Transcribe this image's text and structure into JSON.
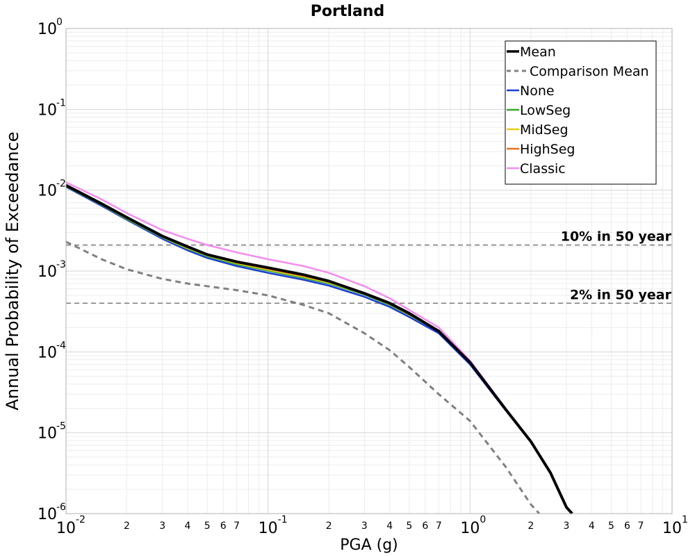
{
  "chart_data": {
    "type": "line",
    "title": "Portland",
    "xlabel": "PGA (g)",
    "ylabel": "Annual Probability of Exceedance",
    "x_scale": "log",
    "y_scale": "log",
    "xlim": [
      0.01,
      10
    ],
    "ylim": [
      1e-06,
      1
    ],
    "grid": true,
    "legend_position": "top-right",
    "x_major_ticks": [
      {
        "value": 0.01,
        "base": "10",
        "exp": "-2"
      },
      {
        "value": 0.1,
        "base": "10",
        "exp": "-1"
      },
      {
        "value": 1,
        "base": "10",
        "exp": "0"
      },
      {
        "value": 10,
        "base": "10",
        "exp": "1"
      }
    ],
    "x_minor_labels": [
      "2",
      "3",
      "4",
      "5",
      "6",
      "7"
    ],
    "y_major_ticks": [
      {
        "value": 1,
        "base": "10",
        "exp": "0"
      },
      {
        "value": 0.1,
        "base": "10",
        "exp": "-1"
      },
      {
        "value": 0.01,
        "base": "10",
        "exp": "-2"
      },
      {
        "value": 0.001,
        "base": "10",
        "exp": "-3"
      },
      {
        "value": 0.0001,
        "base": "10",
        "exp": "-4"
      },
      {
        "value": 1e-05,
        "base": "10",
        "exp": "-5"
      },
      {
        "value": 1e-06,
        "base": "10",
        "exp": "-6"
      }
    ],
    "reference_lines": [
      {
        "label": "10% in 50 year",
        "y": 0.0021,
        "color": "#808080"
      },
      {
        "label": "2% in 50 year",
        "y": 0.0004,
        "color": "#808080"
      }
    ],
    "series": [
      {
        "name": "None",
        "color": "#1a3fd6",
        "width": 2.5,
        "dash": "",
        "x": [
          0.01,
          0.015,
          0.02,
          0.03,
          0.04,
          0.05,
          0.07,
          0.1,
          0.15,
          0.2,
          0.3,
          0.4,
          0.5,
          0.7,
          1.0,
          1.5,
          2.0,
          2.5,
          3.0
        ],
        "y": [
          0.011,
          0.0064,
          0.0043,
          0.0025,
          0.0018,
          0.00145,
          0.00115,
          0.00095,
          0.00078,
          0.00066,
          0.00048,
          0.00036,
          0.00027,
          0.00017,
          7e-05,
          1.9e-05,
          7.7e-06,
          3.2e-06,
          1.2e-06
        ]
      },
      {
        "name": "LowSeg",
        "color": "#3aa62e",
        "width": 2.5,
        "dash": "",
        "x": [
          0.01,
          0.015,
          0.02,
          0.03,
          0.04,
          0.05,
          0.07,
          0.1,
          0.15,
          0.2,
          0.3,
          0.4,
          0.5,
          0.7,
          1.0,
          1.5,
          2.0,
          2.5,
          3.0
        ],
        "y": [
          0.0112,
          0.0066,
          0.0044,
          0.0026,
          0.00188,
          0.00152,
          0.00121,
          0.00101,
          0.00082,
          0.0007,
          0.00051,
          0.00038,
          0.000285,
          0.00018,
          7.3e-05,
          1.95e-05,
          7.8e-06,
          3.2e-06,
          1.2e-06
        ]
      },
      {
        "name": "MidSeg",
        "color": "#e8cf18",
        "width": 2.5,
        "dash": "",
        "x": [
          0.01,
          0.015,
          0.02,
          0.03,
          0.04,
          0.05,
          0.07,
          0.1,
          0.15,
          0.2,
          0.3,
          0.4,
          0.5,
          0.7,
          1.0,
          1.5,
          2.0,
          2.5,
          3.0
        ],
        "y": [
          0.0113,
          0.0067,
          0.0045,
          0.00265,
          0.00192,
          0.00156,
          0.00125,
          0.00104,
          0.00085,
          0.00072,
          0.00052,
          0.00039,
          0.00029,
          0.000182,
          7.4e-05,
          1.95e-05,
          7.8e-06,
          3.2e-06,
          1.2e-06
        ]
      },
      {
        "name": "HighSeg",
        "color": "#e8701a",
        "width": 2.5,
        "dash": "",
        "x": [
          0.01,
          0.015,
          0.02,
          0.03,
          0.04,
          0.05,
          0.07,
          0.1,
          0.15,
          0.2,
          0.3,
          0.4,
          0.5,
          0.7,
          1.0,
          1.5,
          2.0,
          2.5,
          3.0
        ],
        "y": [
          0.0114,
          0.0068,
          0.0046,
          0.0027,
          0.00196,
          0.0016,
          0.00128,
          0.00107,
          0.00087,
          0.00074,
          0.00053,
          0.0004,
          0.00029,
          0.000184,
          7.4e-05,
          1.95e-05,
          7.8e-06,
          3.2e-06,
          1.2e-06
        ]
      },
      {
        "name": "Classic",
        "color": "#f48cf0",
        "width": 2.5,
        "dash": "",
        "x": [
          0.01,
          0.015,
          0.02,
          0.03,
          0.04,
          0.05,
          0.07,
          0.1,
          0.15,
          0.2,
          0.3,
          0.4,
          0.5,
          0.7,
          1.0,
          1.5,
          2.0,
          2.5,
          3.0
        ],
        "y": [
          0.0125,
          0.0077,
          0.0052,
          0.0032,
          0.0025,
          0.0021,
          0.0017,
          0.0014,
          0.00115,
          0.00095,
          0.00065,
          0.00046,
          0.00033,
          0.0002,
          7.8e-05,
          2e-05,
          7.9e-06,
          3.2e-06,
          1.2e-06
        ]
      },
      {
        "name": "Mean",
        "color": "#000000",
        "width": 4,
        "dash": "",
        "x": [
          0.01,
          0.015,
          0.02,
          0.03,
          0.04,
          0.05,
          0.07,
          0.1,
          0.15,
          0.2,
          0.3,
          0.4,
          0.5,
          0.7,
          1.0,
          1.5,
          2.0,
          2.5,
          3.0,
          3.2
        ],
        "y": [
          0.0115,
          0.0068,
          0.0046,
          0.0027,
          0.002,
          0.0016,
          0.0013,
          0.0011,
          0.0009,
          0.00075,
          0.00053,
          0.0004,
          0.0003,
          0.00018,
          7.4e-05,
          1.95e-05,
          7.8e-06,
          3.2e-06,
          1.2e-06,
          1e-06
        ]
      },
      {
        "name": "Comparison Mean",
        "color": "#808080",
        "width": 3,
        "dash": "8,6",
        "x": [
          0.01,
          0.015,
          0.02,
          0.03,
          0.04,
          0.05,
          0.07,
          0.1,
          0.15,
          0.2,
          0.3,
          0.4,
          0.5,
          0.7,
          1.0,
          1.5,
          2.0,
          2.2
        ],
        "y": [
          0.0023,
          0.0014,
          0.00105,
          0.0008,
          0.0007,
          0.00065,
          0.00058,
          0.0005,
          0.00038,
          0.0003,
          0.00017,
          0.000105,
          6.5e-05,
          3e-05,
          1.4e-05,
          3.8e-06,
          1.3e-06,
          1e-06
        ]
      }
    ],
    "legend_order": [
      "Mean",
      "Comparison Mean",
      "None",
      "LowSeg",
      "MidSeg",
      "HighSeg",
      "Classic"
    ]
  }
}
